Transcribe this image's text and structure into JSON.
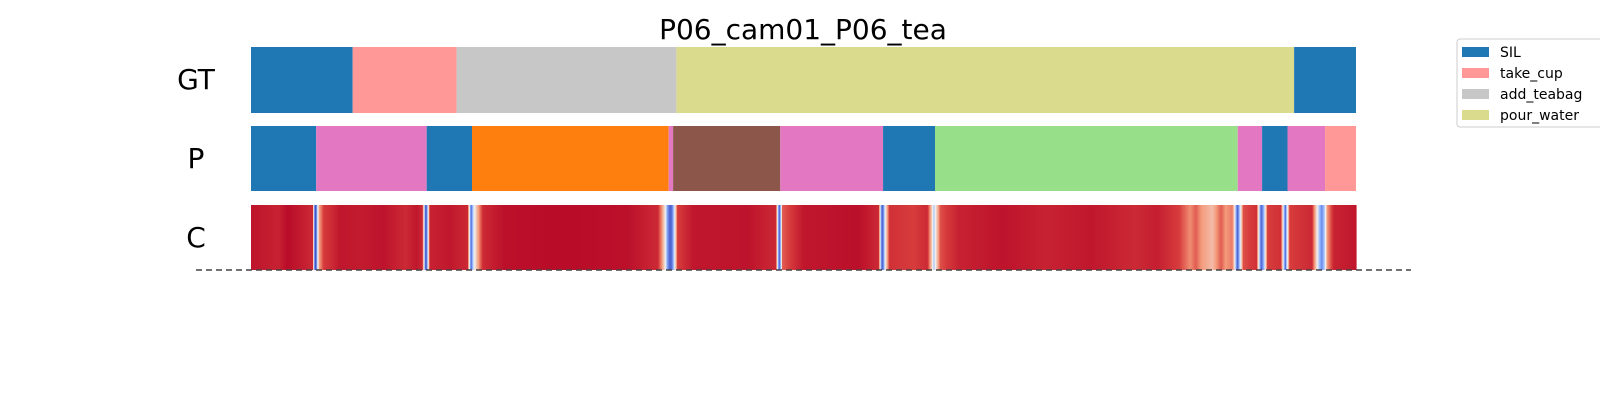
{
  "chart_data": {
    "type": "segmentation",
    "title": "P06_cam01_P06_tea",
    "x_range": [
      0,
      1000
    ],
    "rows": [
      {
        "label": "GT",
        "segments": [
          {
            "start": 0,
            "end": 92,
            "class": "SIL"
          },
          {
            "start": 92,
            "end": 186,
            "class": "take_cup"
          },
          {
            "start": 186,
            "end": 385,
            "class": "add_teabag"
          },
          {
            "start": 385,
            "end": 944,
            "class": "pour_water"
          },
          {
            "start": 944,
            "end": 1000,
            "class": "SIL"
          }
        ]
      },
      {
        "label": "P",
        "segments": [
          {
            "start": 0,
            "end": 59,
            "class": "SIL"
          },
          {
            "start": 59,
            "end": 159,
            "class": "class_pink"
          },
          {
            "start": 159,
            "end": 200,
            "class": "SIL"
          },
          {
            "start": 200,
            "end": 378,
            "class": "class_orange"
          },
          {
            "start": 378,
            "end": 382,
            "class": "class_pink"
          },
          {
            "start": 382,
            "end": 479,
            "class": "class_brown"
          },
          {
            "start": 479,
            "end": 572,
            "class": "class_pink"
          },
          {
            "start": 572,
            "end": 619,
            "class": "SIL"
          },
          {
            "start": 619,
            "end": 893,
            "class": "class_green"
          },
          {
            "start": 893,
            "end": 915,
            "class": "class_pink"
          },
          {
            "start": 915,
            "end": 938,
            "class": "SIL"
          },
          {
            "start": 938,
            "end": 972,
            "class": "class_pink"
          },
          {
            "start": 972,
            "end": 1000,
            "class": "take_cup"
          }
        ]
      },
      {
        "label": "C",
        "type": "confidence",
        "values": [
          [
            0,
            0.96
          ],
          [
            25,
            0.92
          ],
          [
            33,
            0.98
          ],
          [
            56,
            0.9
          ],
          [
            57,
            0.3
          ],
          [
            58,
            0.02
          ],
          [
            59,
            0.05
          ],
          [
            60,
            0.4
          ],
          [
            62,
            0.7
          ],
          [
            66,
            0.86
          ],
          [
            74,
            0.9
          ],
          [
            80,
            0.95
          ],
          [
            100,
            0.94
          ],
          [
            120,
            0.96
          ],
          [
            140,
            0.9
          ],
          [
            150,
            0.95
          ],
          [
            155,
            0.9
          ],
          [
            157,
            0.35
          ],
          [
            158,
            0.05
          ],
          [
            159,
            0.1
          ],
          [
            160,
            0.4
          ],
          [
            162,
            0.92
          ],
          [
            180,
            0.95
          ],
          [
            196,
            0.9
          ],
          [
            198,
            0.4
          ],
          [
            199,
            0.1
          ],
          [
            200,
            0.15
          ],
          [
            201,
            0.4
          ],
          [
            204,
            0.6
          ],
          [
            210,
            0.9
          ],
          [
            230,
            0.97
          ],
          [
            280,
            0.98
          ],
          [
            340,
            0.97
          ],
          [
            368,
            0.9
          ],
          [
            372,
            0.7
          ],
          [
            375,
            0.5
          ],
          [
            377,
            0.2
          ],
          [
            379,
            0.05
          ],
          [
            381,
            0.1
          ],
          [
            383,
            0.4
          ],
          [
            386,
            0.85
          ],
          [
            400,
            0.95
          ],
          [
            450,
            0.96
          ],
          [
            475,
            0.9
          ],
          [
            477,
            0.3
          ],
          [
            478,
            0.05
          ],
          [
            479,
            0.2
          ],
          [
            481,
            0.8
          ],
          [
            500,
            0.95
          ],
          [
            550,
            0.97
          ],
          [
            568,
            0.9
          ],
          [
            570,
            0.3
          ],
          [
            571,
            0.05
          ],
          [
            572,
            0.1
          ],
          [
            574,
            0.5
          ],
          [
            578,
            0.88
          ],
          [
            600,
            0.85
          ],
          [
            612,
            0.9
          ],
          [
            616,
            0.6
          ],
          [
            618,
            0.35
          ],
          [
            620,
            0.55
          ],
          [
            624,
            0.82
          ],
          [
            640,
            0.92
          ],
          [
            680,
            0.96
          ],
          [
            720,
            0.92
          ],
          [
            760,
            0.95
          ],
          [
            800,
            0.9
          ],
          [
            820,
            0.93
          ],
          [
            840,
            0.85
          ],
          [
            850,
            0.72
          ],
          [
            855,
            0.8
          ],
          [
            860,
            0.7
          ],
          [
            870,
            0.62
          ],
          [
            878,
            0.8
          ],
          [
            882,
            0.7
          ],
          [
            888,
            0.75
          ],
          [
            890,
            0.55
          ],
          [
            892,
            0.15
          ],
          [
            893,
            0.05
          ],
          [
            895,
            0.4
          ],
          [
            898,
            0.82
          ],
          [
            910,
            0.88
          ],
          [
            913,
            0.3
          ],
          [
            914,
            0.05
          ],
          [
            916,
            0.2
          ],
          [
            920,
            0.85
          ],
          [
            932,
            0.88
          ],
          [
            935,
            0.3
          ],
          [
            936,
            0.05
          ],
          [
            937,
            0.3
          ],
          [
            940,
            0.85
          ],
          [
            960,
            0.9
          ],
          [
            965,
            0.5
          ],
          [
            967,
            0.3
          ],
          [
            969,
            0.15
          ],
          [
            971,
            0.3
          ],
          [
            974,
            0.7
          ],
          [
            980,
            0.92
          ],
          [
            1000,
            0.95
          ]
        ]
      }
    ],
    "colors": {
      "SIL": "#1f77b4",
      "take_cup": "#ff9896",
      "add_teabag": "#c7c7c7",
      "pour_water": "#dbdb8d",
      "class_pink": "#e377c2",
      "class_orange": "#ff7f0e",
      "class_brown": "#8c564b",
      "class_green": "#98df8a"
    },
    "legend": {
      "placement": "right",
      "entries": [
        "SIL",
        "take_cup",
        "add_teabag",
        "pour_water"
      ]
    },
    "baseline": "dashed"
  }
}
